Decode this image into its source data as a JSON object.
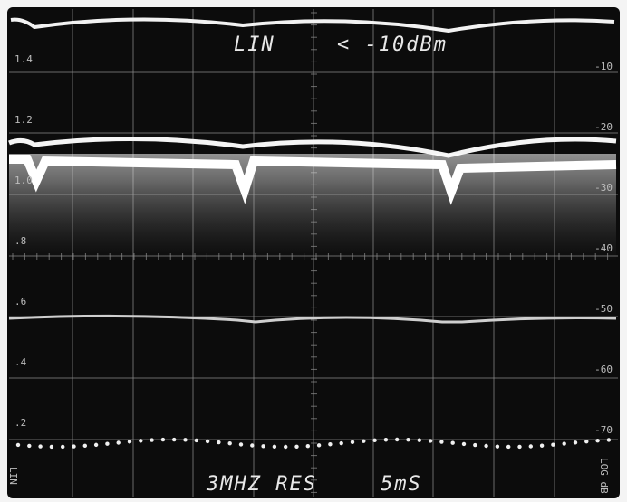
{
  "display": {
    "top_text": "LIN",
    "reference_text": "< -10dBm",
    "resolution_text": "3MHZ RES",
    "sweep_text": "5mS",
    "left_scale": [
      "1.4",
      "1.2",
      "1.0",
      ".8",
      ".6",
      ".4",
      ".2"
    ],
    "right_scale": [
      "-10",
      "-20",
      "-30",
      "-40",
      "-50",
      "-60",
      "-70"
    ],
    "left_corner": "LIN",
    "right_corner": "LOG dB"
  }
}
